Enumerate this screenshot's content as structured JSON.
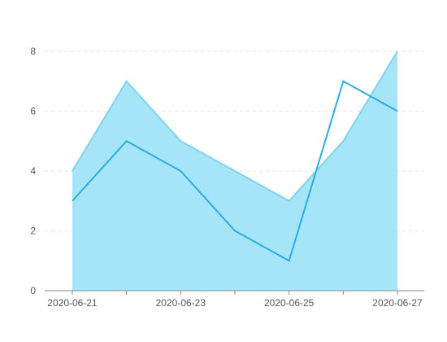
{
  "chart_data": {
    "type": "area",
    "x": [
      "2020-06-21",
      "2020-06-22",
      "2020-06-23",
      "2020-06-24",
      "2020-06-25",
      "2020-06-26",
      "2020-06-27"
    ],
    "x_tick_labels": [
      "2020-06-21",
      "2020-06-23",
      "2020-06-25",
      "2020-06-27"
    ],
    "y_ticks": [
      0,
      2,
      4,
      6,
      8
    ],
    "ylim": [
      0,
      8
    ],
    "grid": true,
    "series": [
      {
        "type": "area",
        "values": [
          4,
          7,
          5,
          4,
          3,
          5,
          8
        ],
        "color": "#a6e4f7",
        "stroke": "#7fd3ef"
      },
      {
        "type": "line",
        "values": [
          3,
          5,
          4,
          2,
          1,
          7,
          6
        ],
        "color": "#29aee0"
      }
    ]
  }
}
